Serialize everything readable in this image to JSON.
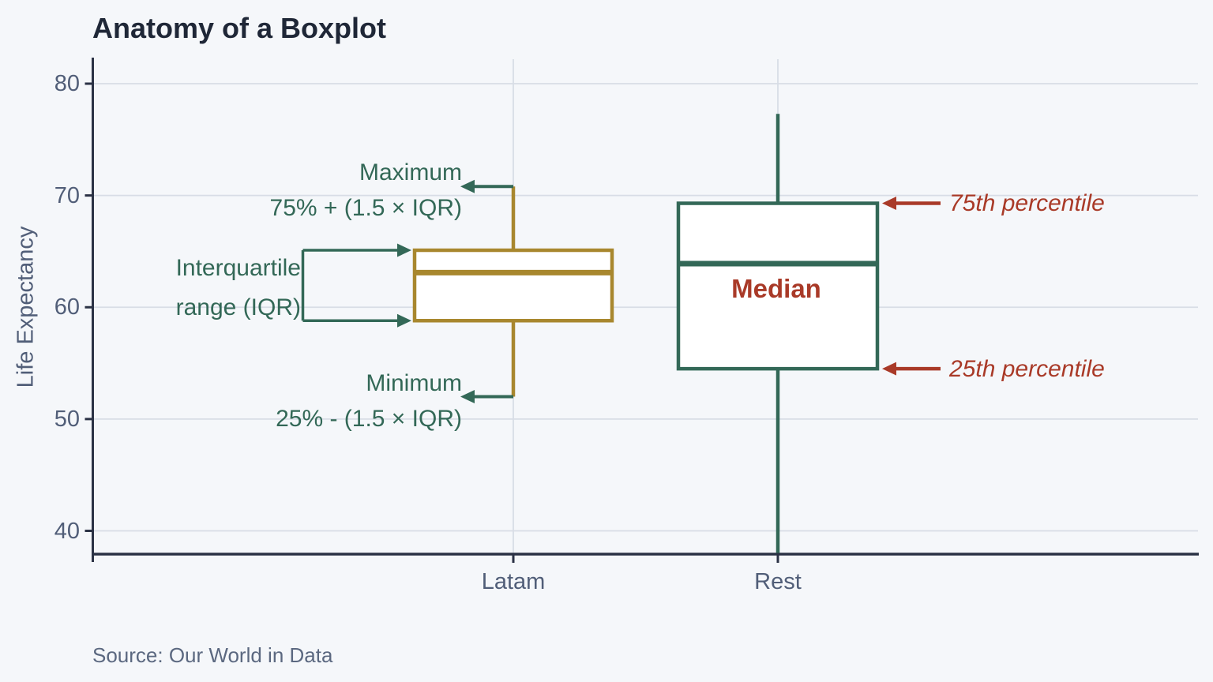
{
  "colors": {
    "background": "#f5f7fa",
    "grid": "#d8dde6",
    "axis": "#2b3245",
    "tick_text": "#515e78",
    "title_text": "#1f2737",
    "green": "#336857",
    "gold": "#a8872e",
    "red": "#a93a28",
    "box_fill": "#ffffff",
    "source_text": "#5b6880"
  },
  "chart_data": {
    "type": "boxplot",
    "title": "Anatomy of a Boxplot",
    "xlabel": "",
    "ylabel": "Life Expectancy",
    "source": "Source: Our World in Data",
    "yticks": [
      40,
      50,
      60,
      70,
      80
    ],
    "ylim": [
      37.8,
      82.2
    ],
    "grid": "horizontal gridlines at y ticks plus vertical gridline at each category",
    "legend": "none",
    "categories": [
      "Latam",
      "Rest"
    ],
    "series": [
      {
        "name": "Latam",
        "color": "#a8872e",
        "whisker_low": 52.0,
        "q1": 58.8,
        "median": 63.1,
        "q3": 65.1,
        "whisker_high": 70.8
      },
      {
        "name": "Rest",
        "color": "#336857",
        "whisker_low": 37.9,
        "q1": 54.5,
        "median": 63.9,
        "q3": 69.3,
        "whisker_high": 77.3,
        "whisker_low_clipped_at_axis": true
      }
    ],
    "annotations": {
      "maximum": {
        "line1": "Maximum",
        "line2": "75% + (1.5 × IQR)"
      },
      "iqr": {
        "line1": "Interquartile",
        "line2": "range (IQR)"
      },
      "minimum": {
        "line1": "Minimum",
        "line2": "25% - (1.5 × IQR)"
      },
      "p75": "75th percentile",
      "p25": "25th percentile",
      "median": "Median"
    }
  }
}
